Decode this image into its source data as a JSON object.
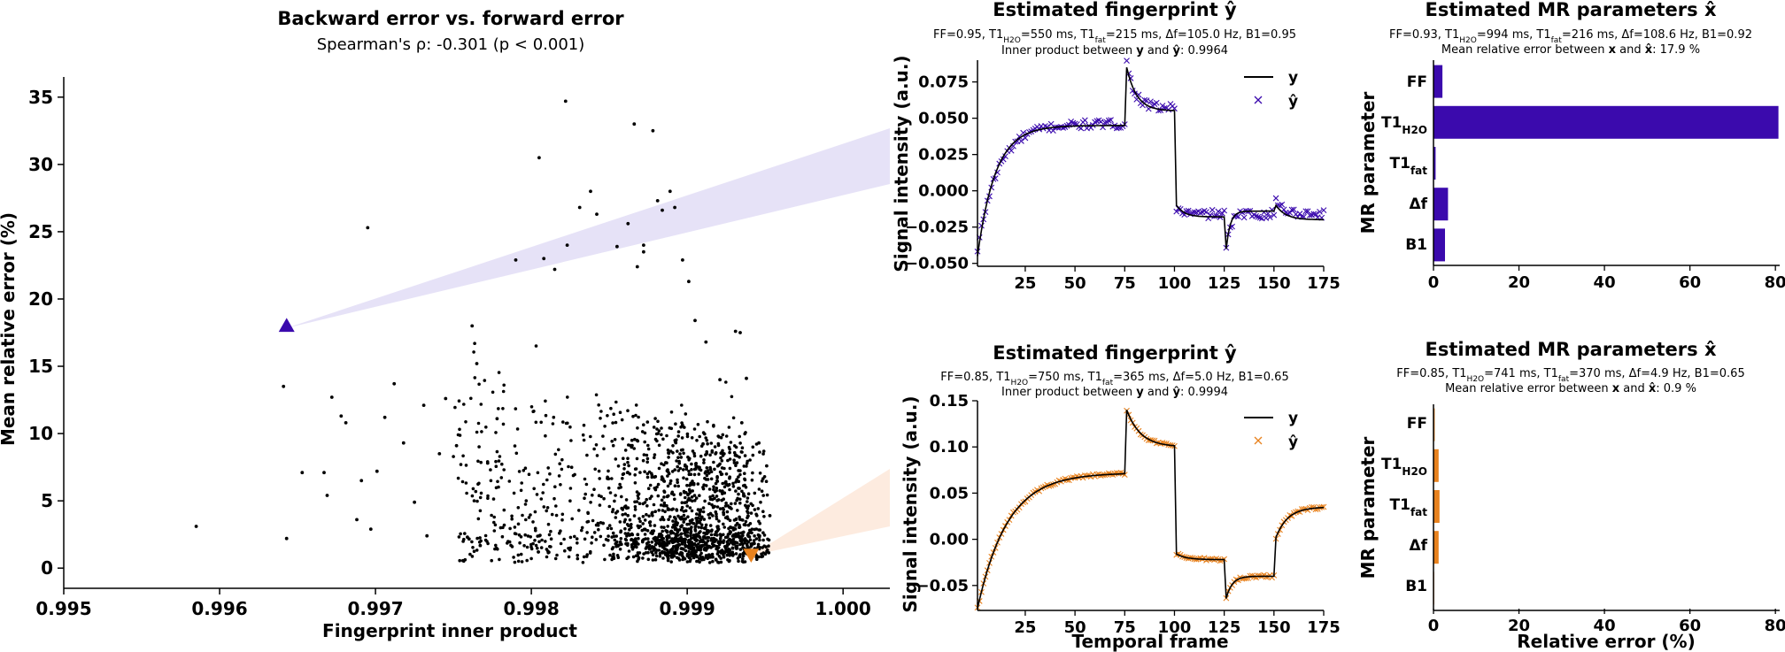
{
  "chart_data": [
    {
      "type": "scatter",
      "title": "Backward error vs. forward error",
      "subtitle": "Spearman's ρ: -0.301 (p < 0.001)",
      "xlabel": "Fingerprint inner product",
      "ylabel": "Mean relative error (%)",
      "xlim": [
        0.995,
        1.0003
      ],
      "ylim": [
        -1.5,
        36.5
      ],
      "xticks": [
        "0.995",
        "0.996",
        "0.997",
        "0.998",
        "0.999",
        "1.000"
      ],
      "yticks": [
        "0",
        "5",
        "10",
        "15",
        "20",
        "25",
        "30",
        "35"
      ],
      "grid": false,
      "color": "#000000",
      "points": [
        [
          0.99585,
          3.1
        ],
        [
          0.99641,
          13.5
        ],
        [
          0.99643,
          2.2
        ],
        [
          0.99653,
          7.1
        ],
        [
          0.99667,
          7.1
        ],
        [
          0.99669,
          5.4
        ],
        [
          0.99672,
          12.7
        ],
        [
          0.99678,
          11.3
        ],
        [
          0.99681,
          10.8
        ],
        [
          0.99688,
          3.6
        ],
        [
          0.99691,
          6.5
        ],
        [
          0.99697,
          2.9
        ],
        [
          0.99701,
          7.2
        ],
        [
          0.99706,
          11.2
        ],
        [
          0.99712,
          13.7
        ],
        [
          0.99718,
          9.3
        ],
        [
          0.99725,
          4.9
        ],
        [
          0.99731,
          12.1
        ],
        [
          0.99733,
          2.4
        ],
        [
          0.99741,
          8.5
        ],
        [
          0.99745,
          12.6
        ],
        [
          0.99752,
          9.1
        ],
        [
          0.99759,
          2.3
        ],
        [
          0.99762,
          18.0
        ],
        [
          0.99765,
          15.2
        ],
        [
          0.99772,
          7.8
        ],
        [
          0.99778,
          11.1
        ],
        [
          0.99695,
          25.3
        ],
        [
          0.9979,
          22.9
        ],
        [
          0.99805,
          30.5
        ],
        [
          0.99808,
          23.0
        ],
        [
          0.99815,
          22.2
        ],
        [
          0.99823,
          24.0
        ],
        [
          0.99831,
          26.8
        ],
        [
          0.99838,
          28.0
        ],
        [
          0.99842,
          26.3
        ],
        [
          0.99855,
          23.9
        ],
        [
          0.99862,
          25.6
        ],
        [
          0.99868,
          22.4
        ],
        [
          0.99872,
          24.0
        ],
        [
          0.99822,
          34.7
        ],
        [
          0.99866,
          33.0
        ],
        [
          0.99878,
          32.5
        ],
        [
          0.99881,
          27.3
        ],
        [
          0.99884,
          26.6
        ],
        [
          0.99889,
          28.0
        ],
        [
          0.99892,
          26.8
        ],
        [
          0.99897,
          22.9
        ],
        [
          0.99901,
          21.3
        ],
        [
          0.99872,
          23.5
        ],
        [
          0.99905,
          18.4
        ],
        [
          0.99912,
          16.8
        ],
        [
          0.99921,
          14.0
        ],
        [
          0.99931,
          17.6
        ],
        [
          0.99934,
          17.5
        ],
        [
          0.99938,
          14.1
        ],
        [
          0.99935,
          10.8
        ],
        [
          0.99946,
          9.3
        ],
        [
          0.99951,
          7.6
        ],
        [
          0.99953,
          3.9
        ]
      ],
      "cluster": {
        "x_center": 0.999,
        "x_spread": 0.0009,
        "y_mode": 2.5,
        "count": 1700
      },
      "markers": [
        {
          "x": 0.99643,
          "y": 18.0,
          "shape": "triangle-up",
          "color": "#3b0aad",
          "panel": "top"
        },
        {
          "x": 0.99941,
          "y": 1.0,
          "shape": "triangle-down",
          "color": "#e8821e",
          "panel": "bottom"
        }
      ]
    },
    {
      "type": "line",
      "title": "Estimated fingerprint ŷ",
      "params": "FF=0.95, T1H2O=550 ms, T1fat=215 ms, Δf=105.0 Hz, B1=0.95",
      "inner": "Inner product between y and ŷ: 0.9964",
      "xlabel": "",
      "ylabel": "Signal intensity (a.u.)",
      "xlim": [
        1,
        175
      ],
      "ylim": [
        -0.052,
        0.09
      ],
      "xticks": [
        "25",
        "50",
        "75",
        "100",
        "125",
        "150",
        "175"
      ],
      "yticks": [
        "−0.050",
        "−0.025",
        "0.000",
        "0.025",
        "0.050",
        "0.075"
      ],
      "series": [
        {
          "name": "y",
          "color": "#000000",
          "segments": [
            {
              "x0": 1,
              "x1": 75,
              "a": -0.045,
              "b": 0.045,
              "tau": 9
            },
            {
              "x0": 76,
              "x1": 100,
              "a": 0.085,
              "b": 0.055,
              "tau": 5
            },
            {
              "x0": 101,
              "x1": 125,
              "a": -0.01,
              "b": -0.018,
              "tau": 4
            },
            {
              "x0": 126,
              "x1": 150,
              "a": -0.04,
              "b": -0.014,
              "tau": 2
            },
            {
              "x0": 151,
              "x1": 175,
              "a": -0.01,
              "b": -0.02,
              "tau": 5
            }
          ]
        },
        {
          "name": "ŷ",
          "color": "#3b0aad",
          "marker": "x",
          "segments": [
            {
              "x0": 1,
              "x1": 75,
              "a": -0.042,
              "b": 0.046,
              "tau": 10
            },
            {
              "x0": 76,
              "x1": 100,
              "a": 0.088,
              "b": 0.057,
              "tau": 4
            },
            {
              "x0": 101,
              "x1": 125,
              "a": -0.012,
              "b": -0.016,
              "tau": 3
            },
            {
              "x0": 126,
              "x1": 150,
              "a": -0.042,
              "b": -0.016,
              "tau": 2
            },
            {
              "x0": 151,
              "x1": 175,
              "a": -0.006,
              "b": -0.016,
              "tau": 4
            }
          ],
          "noise": 0.003
        }
      ]
    },
    {
      "type": "bar",
      "orientation": "horizontal",
      "title": "Estimated MR parameters x̂",
      "params": "FF=0.93, T1H2O=994 ms, T1fat=216 ms, Δf=108.6 Hz, B1=0.92",
      "mre": "Mean relative error between x and x̂: 17.9 %",
      "ylabel": "MR parameter",
      "xlabel": "",
      "xlim": [
        0,
        81
      ],
      "xticks": [
        "0",
        "20",
        "40",
        "60",
        "80"
      ],
      "categories": [
        "FF",
        "T1H2O",
        "T1fat",
        "Δf",
        "B1"
      ],
      "values": [
        2.1,
        80.7,
        0.5,
        3.4,
        2.7
      ],
      "color": "#3b0aad"
    },
    {
      "type": "line",
      "title": "Estimated fingerprint ŷ",
      "params": "FF=0.85, T1H2O=750 ms, T1fat=365 ms, Δf=5.0 Hz, B1=0.65",
      "inner": "Inner product between y and ŷ: 0.9994",
      "xlabel": "Temporal frame",
      "ylabel": "Signal intensity (a.u.)",
      "xlim": [
        1,
        175
      ],
      "ylim": [
        -0.077,
        0.15
      ],
      "xticks": [
        "25",
        "50",
        "75",
        "100",
        "125",
        "150",
        "175"
      ],
      "yticks": [
        "−0.05",
        "0.00",
        "0.05",
        "0.10",
        "0.15"
      ],
      "series": [
        {
          "name": "y",
          "color": "#000000",
          "segments": [
            {
              "x0": 1,
              "x1": 75,
              "a": -0.075,
              "b": 0.072,
              "tau": 15
            },
            {
              "x0": 76,
              "x1": 100,
              "a": 0.14,
              "b": 0.1,
              "tau": 7
            },
            {
              "x0": 101,
              "x1": 125,
              "a": -0.016,
              "b": -0.022,
              "tau": 5
            },
            {
              "x0": 126,
              "x1": 150,
              "a": -0.064,
              "b": -0.04,
              "tau": 3
            },
            {
              "x0": 151,
              "x1": 175,
              "a": 0.002,
              "b": 0.035,
              "tau": 6
            }
          ]
        },
        {
          "name": "ŷ",
          "color": "#e8821e",
          "marker": "x",
          "segments": [
            {
              "x0": 1,
              "x1": 75,
              "a": -0.075,
              "b": 0.072,
              "tau": 15
            },
            {
              "x0": 76,
              "x1": 100,
              "a": 0.14,
              "b": 0.1,
              "tau": 7
            },
            {
              "x0": 101,
              "x1": 125,
              "a": -0.016,
              "b": -0.022,
              "tau": 5
            },
            {
              "x0": 126,
              "x1": 150,
              "a": -0.064,
              "b": -0.04,
              "tau": 3
            },
            {
              "x0": 151,
              "x1": 175,
              "a": 0.002,
              "b": 0.035,
              "tau": 6
            }
          ],
          "noise": 0.0015
        }
      ]
    },
    {
      "type": "bar",
      "orientation": "horizontal",
      "title": "Estimated MR parameters x̂",
      "params": "FF=0.85, T1H2O=741 ms, T1fat=370 ms, Δf=4.9 Hz, B1=0.65",
      "mre": "Mean relative error between x and x̂: 0.9 %",
      "ylabel": "MR parameter",
      "xlabel": "Relative error (%)",
      "xlim": [
        0,
        81
      ],
      "xticks": [
        "0",
        "20",
        "40",
        "60",
        "80"
      ],
      "categories": [
        "FF",
        "T1H2O",
        "T1fat",
        "Δf",
        "B1"
      ],
      "values": [
        0.3,
        1.2,
        1.4,
        1.2,
        0.1
      ],
      "color": "#e8821e"
    }
  ]
}
